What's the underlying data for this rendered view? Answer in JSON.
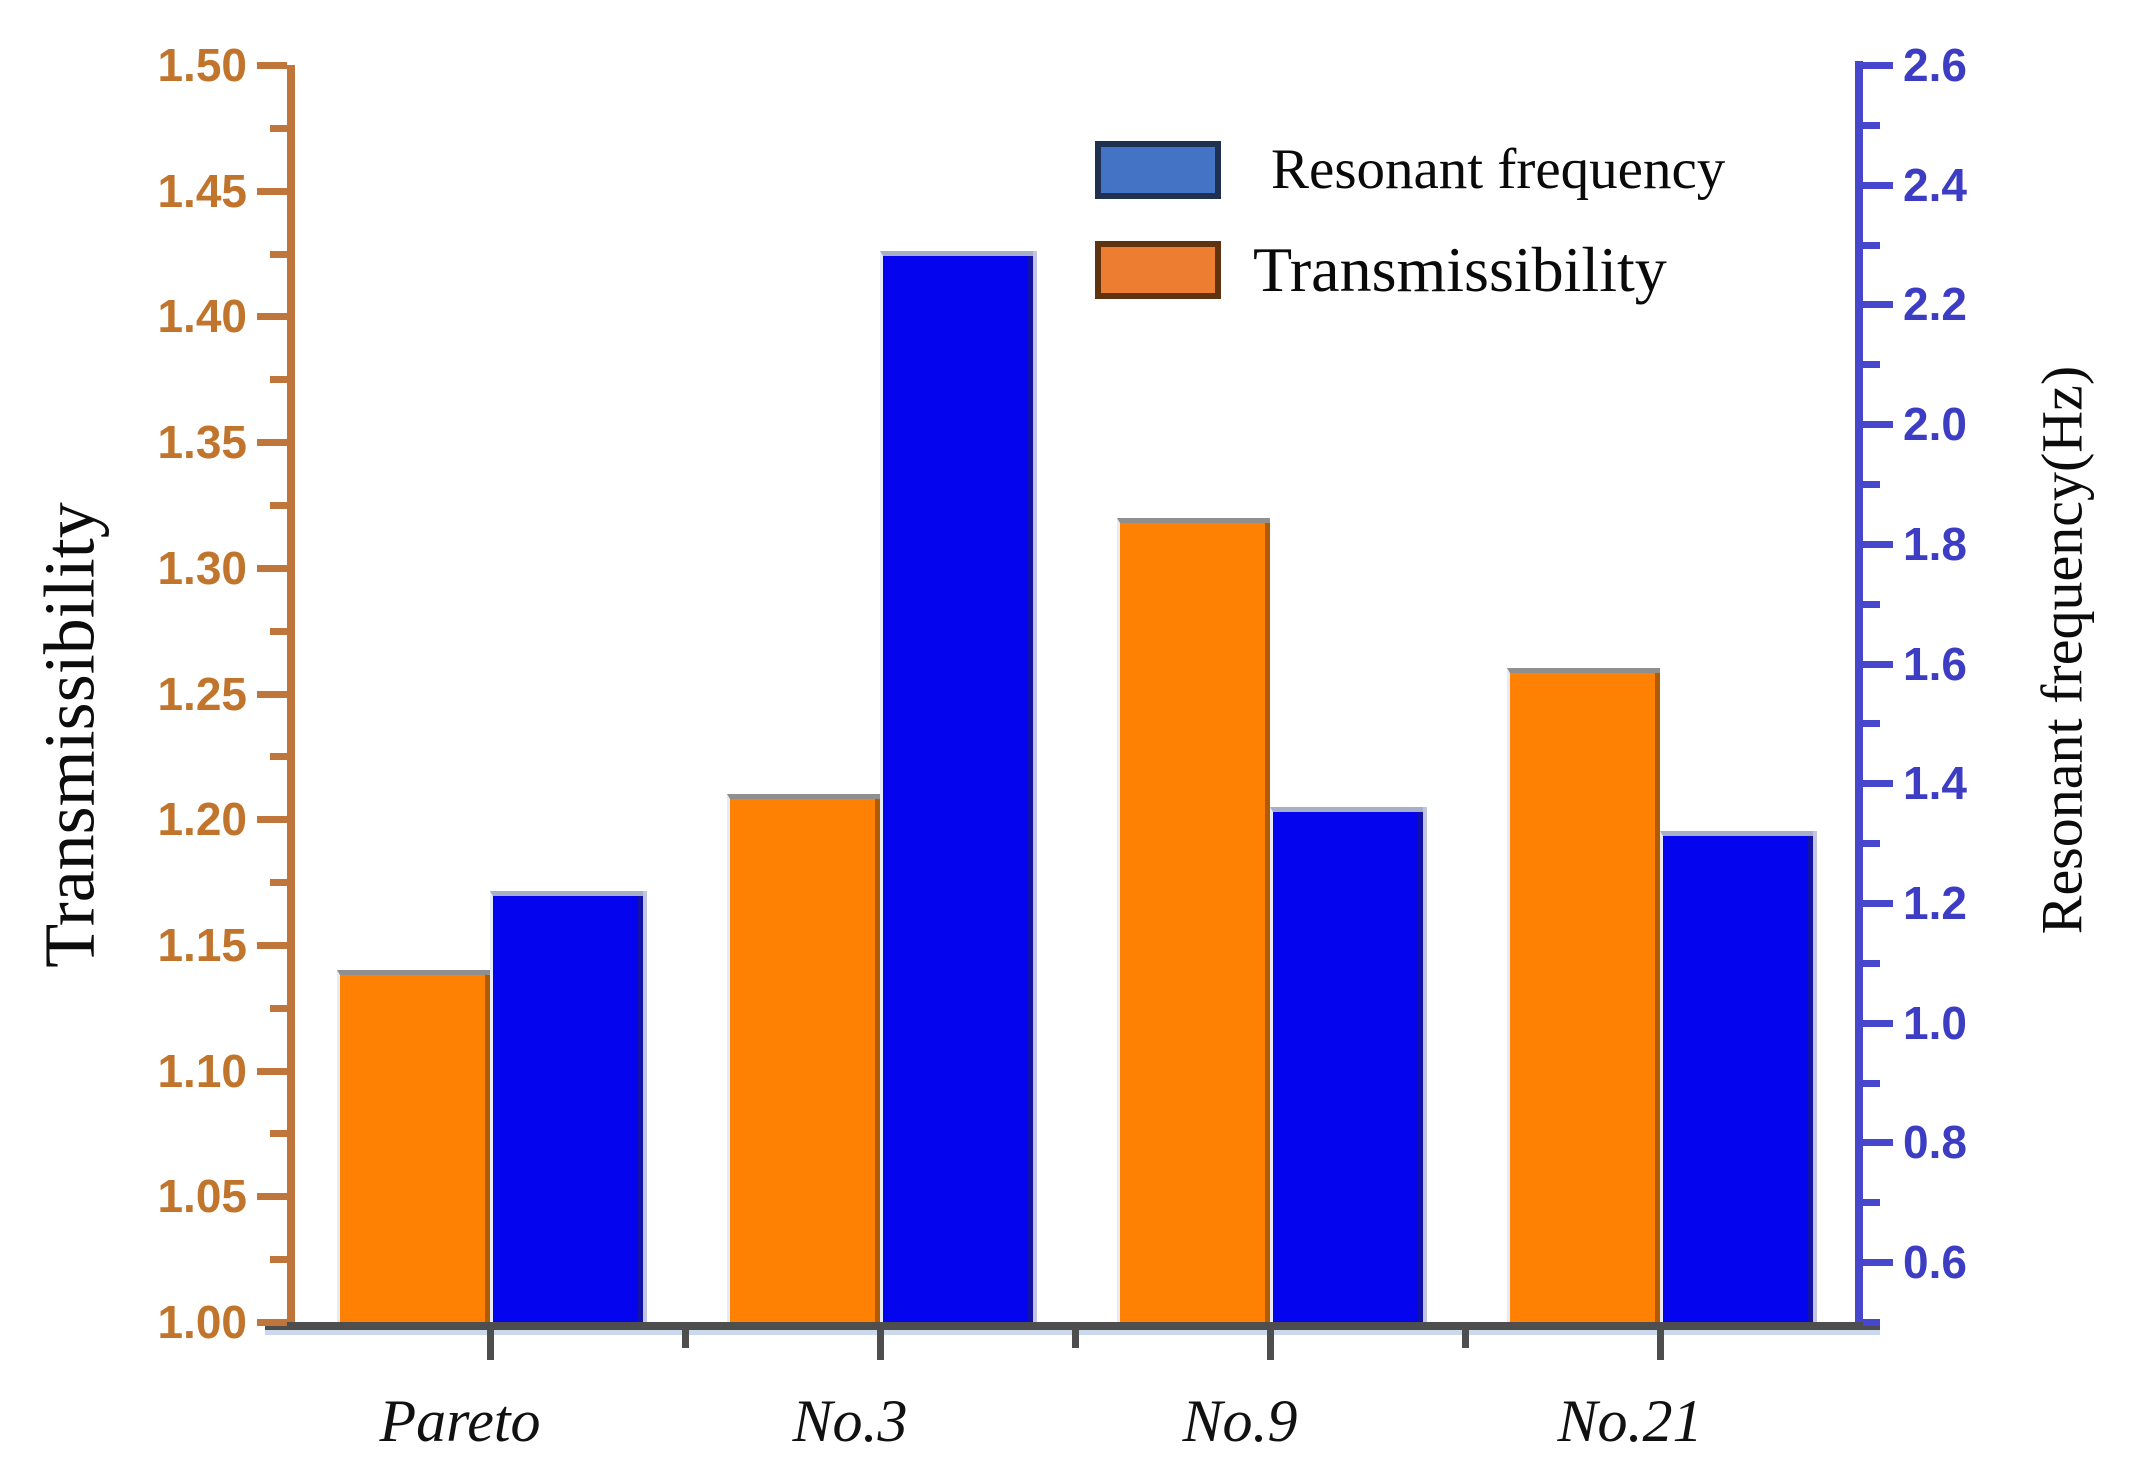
{
  "chart_data": {
    "type": "bar",
    "title": "",
    "categories": [
      "Pareto",
      "No.3",
      "No.9",
      "No.21"
    ],
    "series": [
      {
        "name": "Transmissibility",
        "axis": "left",
        "color": "#ff8103",
        "values": [
          1.14,
          1.21,
          1.32,
          1.26
        ]
      },
      {
        "name": "Resonant frequency",
        "axis": "right",
        "color": "#0404ef",
        "values": [
          1.22,
          2.29,
          1.36,
          1.32
        ]
      }
    ],
    "left_axis": {
      "label": "Transmissibility",
      "min": 1.0,
      "max": 1.5,
      "tick_labels": [
        "1.00",
        "1.05",
        "1.10",
        "1.15",
        "1.20",
        "1.25",
        "1.30",
        "1.35",
        "1.40",
        "1.45",
        "1.50"
      ],
      "minor_ticks": [
        1.025,
        1.075,
        1.125,
        1.175,
        1.225,
        1.275,
        1.325,
        1.375,
        1.425,
        1.475
      ],
      "color": "#c0763a",
      "label_color": "#c1752c"
    },
    "right_axis": {
      "label": "Resonant frequency(Hz)",
      "min": 0.5,
      "max": 2.6,
      "tick_labels": [
        "0.6",
        "0.8",
        "1.0",
        "1.2",
        "1.4",
        "1.6",
        "1.8",
        "2.0",
        "2.2",
        "2.4",
        "2.6"
      ],
      "minor_ticks": [
        0.5,
        0.7,
        0.9,
        1.1,
        1.3,
        1.5,
        1.7,
        1.9,
        2.1,
        2.3,
        2.5
      ],
      "color": "#4747cd",
      "label_color": "#3d3dc4"
    },
    "legend": {
      "position": "top-right",
      "entries": [
        {
          "label": "Resonant frequency",
          "color": "#4472c4",
          "border": "#1f3050"
        },
        {
          "label": "Transmissibility",
          "color": "#ed7d31",
          "border": "#5f3310"
        }
      ]
    },
    "grid": "off"
  }
}
